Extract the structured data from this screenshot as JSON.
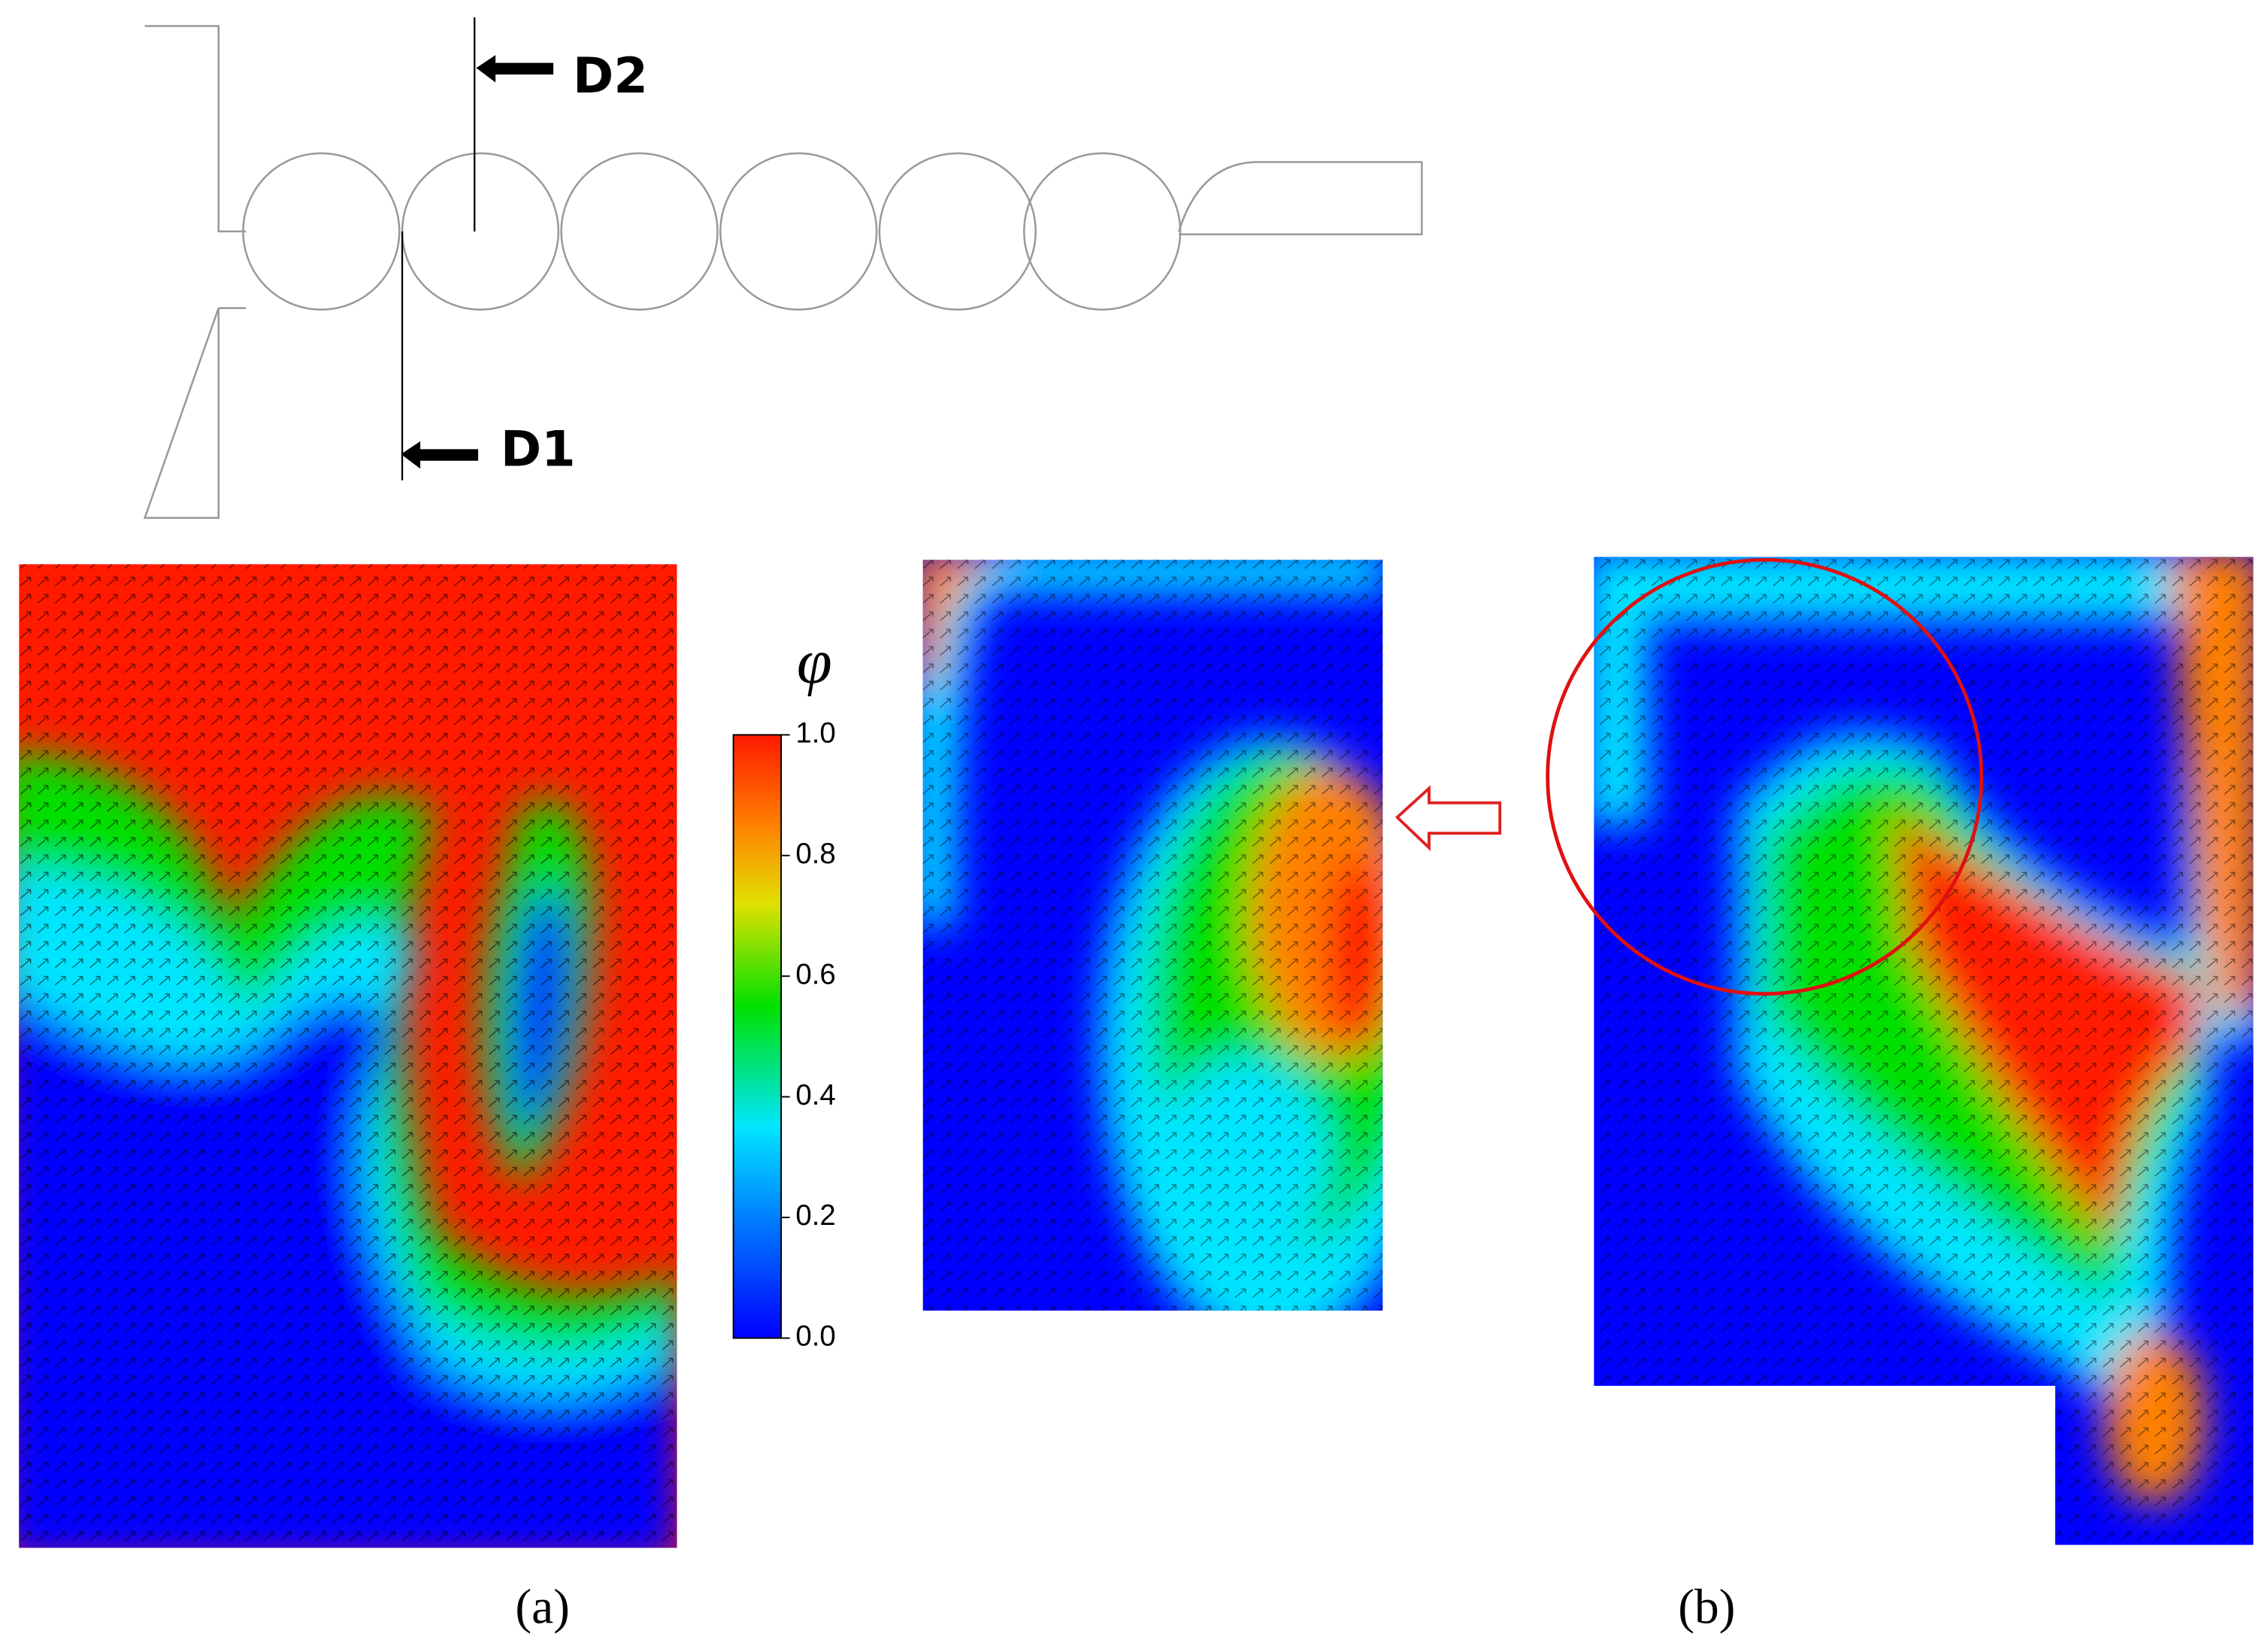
{
  "schematic": {
    "labels": {
      "d2": "D2",
      "d1": "D1"
    }
  },
  "colorbar": {
    "symbol": "φ",
    "range": [
      0,
      1
    ],
    "ticks": [
      {
        "value": 1,
        "label": "1.0"
      },
      {
        "value": 0.8,
        "label": "0.8"
      },
      {
        "value": 0.6,
        "label": "0.6"
      },
      {
        "value": 0.4,
        "label": "0.4"
      },
      {
        "value": 0.2,
        "label": "0.2"
      },
      {
        "value": 0,
        "label": "0.0"
      }
    ]
  },
  "panels": {
    "a": "(a)",
    "b": "(b)"
  }
}
